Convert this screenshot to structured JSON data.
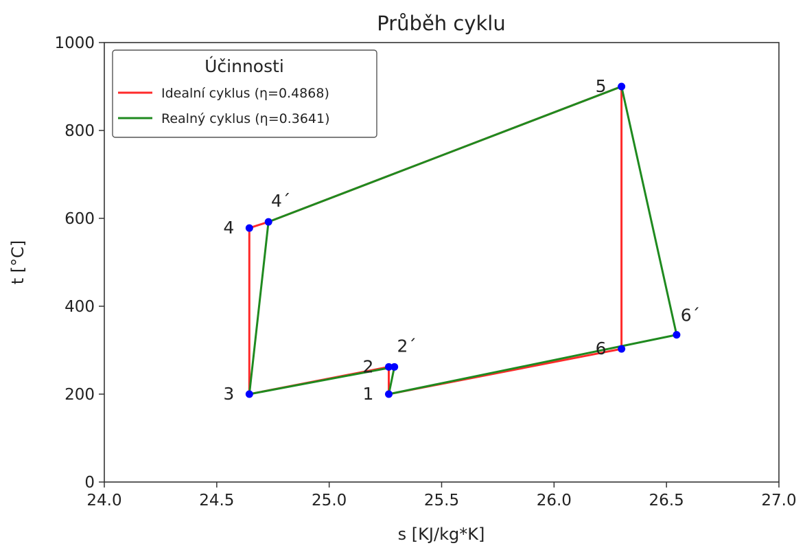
{
  "chart_data": {
    "type": "line",
    "title": "Průběh cyklu",
    "xlabel": "s [KJ/kg*K]",
    "ylabel": "t [°C]",
    "xlim": [
      24.0,
      27.0
    ],
    "ylim": [
      0,
      1000
    ],
    "x_ticks": [
      24.0,
      24.5,
      25.0,
      25.5,
      26.0,
      26.5,
      27.0
    ],
    "x_tick_labels": [
      "24.0",
      "24.5",
      "25.0",
      "25.5",
      "26.0",
      "26.5",
      "27.0"
    ],
    "y_ticks": [
      0,
      200,
      400,
      600,
      800,
      1000
    ],
    "y_tick_labels": [
      "0",
      "200",
      "400",
      "600",
      "800",
      "1000"
    ],
    "grid": false,
    "legend": {
      "title": "Účinnosti",
      "placement": "top-left"
    },
    "series": [
      {
        "name": "Idealní cyklus (η=0.4868)",
        "color": "#ff2a2a",
        "points": [
          {
            "x": 25.265,
            "y": 200
          },
          {
            "x": 25.265,
            "y": 262
          },
          {
            "x": 24.645,
            "y": 200
          },
          {
            "x": 24.645,
            "y": 578
          },
          {
            "x": 24.73,
            "y": 592
          },
          {
            "x": 26.3,
            "y": 900
          },
          {
            "x": 26.3,
            "y": 303
          },
          {
            "x": 25.265,
            "y": 200
          }
        ]
      },
      {
        "name": "Realný cyklus (η=0.3641)",
        "color": "#1f8a1f",
        "points": [
          {
            "x": 25.265,
            "y": 200
          },
          {
            "x": 25.29,
            "y": 262
          },
          {
            "x": 24.645,
            "y": 200
          },
          {
            "x": 24.73,
            "y": 592
          },
          {
            "x": 26.3,
            "y": 900
          },
          {
            "x": 26.545,
            "y": 335
          },
          {
            "x": 25.265,
            "y": 200
          }
        ]
      }
    ],
    "markers": {
      "color": "#0000ff",
      "points": [
        {
          "x": 25.265,
          "y": 200
        },
        {
          "x": 25.265,
          "y": 262
        },
        {
          "x": 25.29,
          "y": 262
        },
        {
          "x": 24.645,
          "y": 200
        },
        {
          "x": 24.645,
          "y": 578
        },
        {
          "x": 24.73,
          "y": 592
        },
        {
          "x": 26.3,
          "y": 900
        },
        {
          "x": 26.3,
          "y": 303
        },
        {
          "x": 26.545,
          "y": 335
        }
      ]
    },
    "annotations": [
      {
        "text": "1",
        "x": 25.265,
        "y": 200
      },
      {
        "text": "2",
        "x": 25.265,
        "y": 262
      },
      {
        "text": "2´",
        "x": 25.29,
        "y": 262
      },
      {
        "text": "3",
        "x": 24.645,
        "y": 200
      },
      {
        "text": "4",
        "x": 24.645,
        "y": 578
      },
      {
        "text": "4´",
        "x": 24.73,
        "y": 592
      },
      {
        "text": "5",
        "x": 26.3,
        "y": 900
      },
      {
        "text": "6",
        "x": 26.3,
        "y": 303
      },
      {
        "text": "6´",
        "x": 26.545,
        "y": 335
      }
    ]
  }
}
